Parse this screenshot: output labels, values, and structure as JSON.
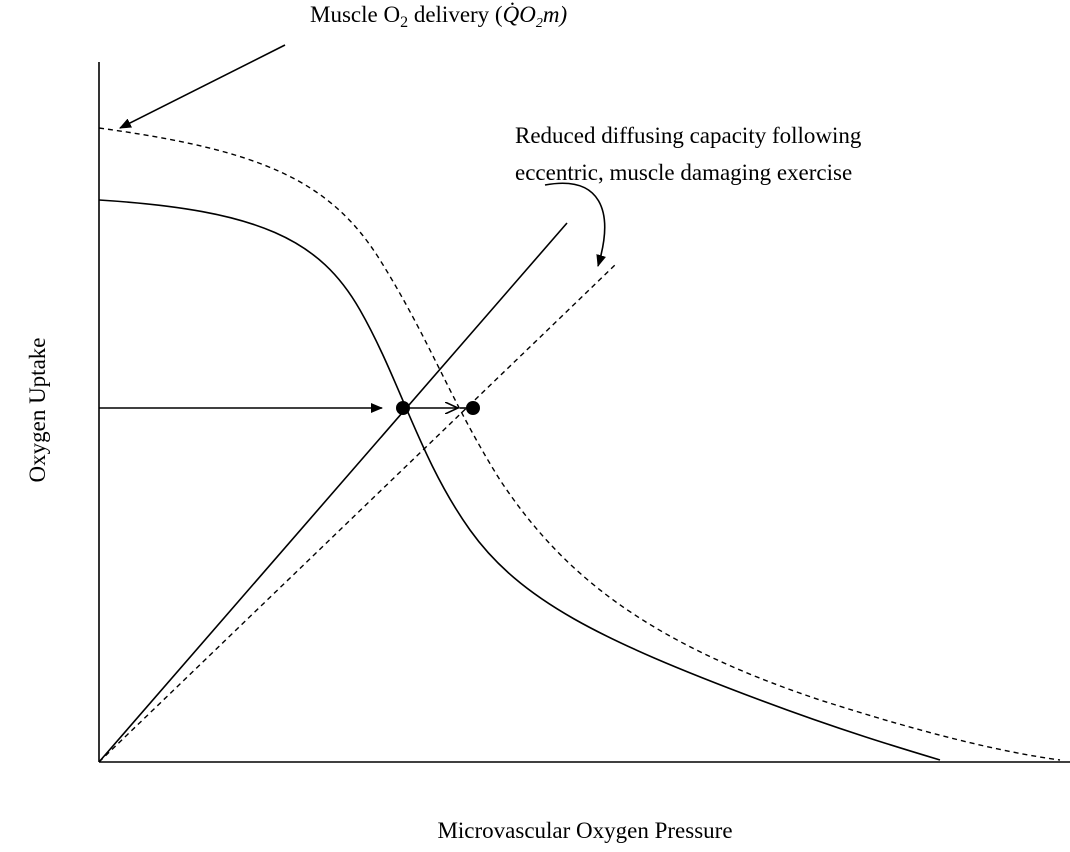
{
  "annotation_delivery": {
    "prefix": "Muscle O",
    "sub": "2",
    "middle": " delivery (",
    "symbol": "Q̇O",
    "symbol_sub": "2",
    "symbol_tail": "m",
    "suffix": ")"
  },
  "annotation_diffusing": {
    "lines": [
      "Reduced diffusing capacity following",
      "eccentric, muscle damaging exercise"
    ]
  },
  "y_axis_label": "Oxygen Uptake",
  "x_axis_label": "Microvascular Oxygen Pressure"
}
